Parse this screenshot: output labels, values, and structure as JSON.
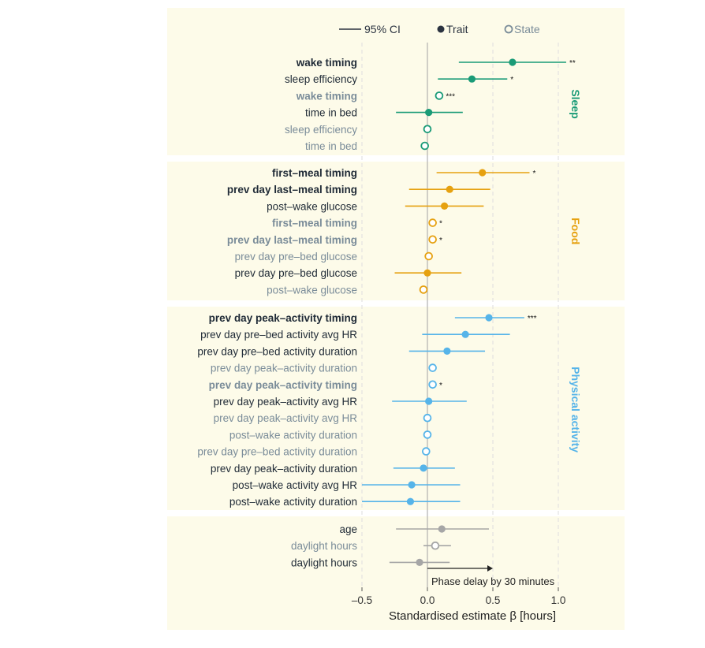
{
  "chart_data": {
    "type": "scatter",
    "subtype": "forest-plot",
    "xlabel": "Standardised estimate β [hours]",
    "xlim": [
      -0.5,
      1.0
    ],
    "xticks": [
      -0.5,
      0.0,
      0.5,
      1.0
    ],
    "xtick_labels": [
      "–0.5",
      "0.0",
      "0.5",
      "1.0"
    ],
    "legend": {
      "position": "top",
      "ci_label": "95% CI",
      "trait_label": "Trait",
      "state_label": "State"
    },
    "annotation": {
      "text": "Phase delay by 30 minutes",
      "x_from": 0.0,
      "x_to": 0.5
    },
    "groups": [
      {
        "name": "Sleep",
        "color": "#1a9b77",
        "rows": [
          {
            "label": "wake timing",
            "bold": true,
            "kind": "trait",
            "est": 0.65,
            "lo": 0.24,
            "hi": 1.06,
            "sig": "**"
          },
          {
            "label": "sleep efficiency",
            "bold": false,
            "kind": "trait",
            "est": 0.34,
            "lo": 0.08,
            "hi": 0.61,
            "sig": "*"
          },
          {
            "label": "wake timing",
            "bold": true,
            "kind": "state",
            "est": 0.09,
            "lo": null,
            "hi": null,
            "sig": "***"
          },
          {
            "label": "time in bed",
            "bold": false,
            "kind": "trait",
            "est": 0.01,
            "lo": -0.24,
            "hi": 0.27,
            "sig": ""
          },
          {
            "label": "sleep efficiency",
            "bold": false,
            "kind": "state",
            "est": 0.0,
            "lo": null,
            "hi": null,
            "sig": ""
          },
          {
            "label": "time in bed",
            "bold": false,
            "kind": "state",
            "est": -0.02,
            "lo": null,
            "hi": null,
            "sig": ""
          }
        ]
      },
      {
        "name": "Food",
        "color": "#e6a110",
        "rows": [
          {
            "label": "first–meal timing",
            "bold": true,
            "kind": "trait",
            "est": 0.42,
            "lo": 0.07,
            "hi": 0.78,
            "sig": "*"
          },
          {
            "label": "prev day last–meal timing",
            "bold": true,
            "kind": "trait",
            "est": 0.17,
            "lo": -0.14,
            "hi": 0.48,
            "sig": ""
          },
          {
            "label": "post–wake glucose",
            "bold": false,
            "kind": "trait",
            "est": 0.13,
            "lo": -0.17,
            "hi": 0.43,
            "sig": ""
          },
          {
            "label": "first–meal timing",
            "bold": true,
            "kind": "state",
            "est": 0.04,
            "lo": null,
            "hi": null,
            "sig": "*"
          },
          {
            "label": "prev day last–meal timing",
            "bold": true,
            "kind": "state",
            "est": 0.04,
            "lo": null,
            "hi": null,
            "sig": "*"
          },
          {
            "label": "prev day pre–bed glucose",
            "bold": false,
            "kind": "state",
            "est": 0.01,
            "lo": null,
            "hi": null,
            "sig": ""
          },
          {
            "label": "prev day pre–bed glucose",
            "bold": false,
            "kind": "trait",
            "est": 0.0,
            "lo": -0.25,
            "hi": 0.26,
            "sig": ""
          },
          {
            "label": "post–wake glucose",
            "bold": false,
            "kind": "state",
            "est": -0.03,
            "lo": null,
            "hi": null,
            "sig": ""
          }
        ]
      },
      {
        "name": "Physical activity",
        "color": "#56b4e9",
        "rows": [
          {
            "label": "prev day peak–activity timing",
            "bold": true,
            "kind": "trait",
            "est": 0.47,
            "lo": 0.21,
            "hi": 0.74,
            "sig": "***"
          },
          {
            "label": "prev day pre–bed activity avg HR",
            "bold": false,
            "kind": "trait",
            "est": 0.29,
            "lo": -0.04,
            "hi": 0.63,
            "sig": ""
          },
          {
            "label": "prev day pre–bed activity duration",
            "bold": false,
            "kind": "trait",
            "est": 0.15,
            "lo": -0.14,
            "hi": 0.44,
            "sig": ""
          },
          {
            "label": "prev day peak–activity duration",
            "bold": false,
            "kind": "state",
            "est": 0.04,
            "lo": null,
            "hi": null,
            "sig": ""
          },
          {
            "label": "prev day peak–activity timing",
            "bold": true,
            "kind": "state",
            "est": 0.04,
            "lo": null,
            "hi": null,
            "sig": "*"
          },
          {
            "label": "prev day peak–activity avg HR",
            "bold": false,
            "kind": "trait",
            "est": 0.01,
            "lo": -0.27,
            "hi": 0.3,
            "sig": ""
          },
          {
            "label": "prev day peak–activity avg HR",
            "bold": false,
            "kind": "state",
            "est": 0.0,
            "lo": null,
            "hi": null,
            "sig": ""
          },
          {
            "label": "post–wake activity duration",
            "bold": false,
            "kind": "state",
            "est": 0.0,
            "lo": null,
            "hi": null,
            "sig": ""
          },
          {
            "label": "prev day pre–bed activity duration",
            "bold": false,
            "kind": "state",
            "est": -0.01,
            "lo": null,
            "hi": null,
            "sig": ""
          },
          {
            "label": "prev day peak–activity duration",
            "bold": false,
            "kind": "trait",
            "est": -0.03,
            "lo": -0.26,
            "hi": 0.21,
            "sig": ""
          },
          {
            "label": "post–wake activity avg HR",
            "bold": false,
            "kind": "trait",
            "est": -0.12,
            "lo": -0.5,
            "hi": 0.25,
            "sig": ""
          },
          {
            "label": "post–wake activity duration",
            "bold": false,
            "kind": "trait",
            "est": -0.13,
            "lo": -0.5,
            "hi": 0.25,
            "sig": ""
          }
        ]
      },
      {
        "name": "",
        "color": "#a6a6a6",
        "rows": [
          {
            "label": "age",
            "bold": false,
            "kind": "trait",
            "est": 0.11,
            "lo": -0.24,
            "hi": 0.47,
            "sig": ""
          },
          {
            "label": "daylight hours",
            "bold": false,
            "kind": "state",
            "est": 0.06,
            "lo": -0.03,
            "hi": 0.18,
            "sig": ""
          },
          {
            "label": "daylight hours",
            "bold": false,
            "kind": "trait",
            "est": -0.06,
            "lo": -0.29,
            "hi": 0.17,
            "sig": ""
          }
        ]
      }
    ]
  },
  "colors": {
    "panel_bg": "#fdfbe9",
    "trait_text": "#1f2a36",
    "state_text": "#7a8c99",
    "zero_line": "#aaaaaa",
    "grid_dash": "#dedede",
    "legend_dark": "#2b3340"
  }
}
